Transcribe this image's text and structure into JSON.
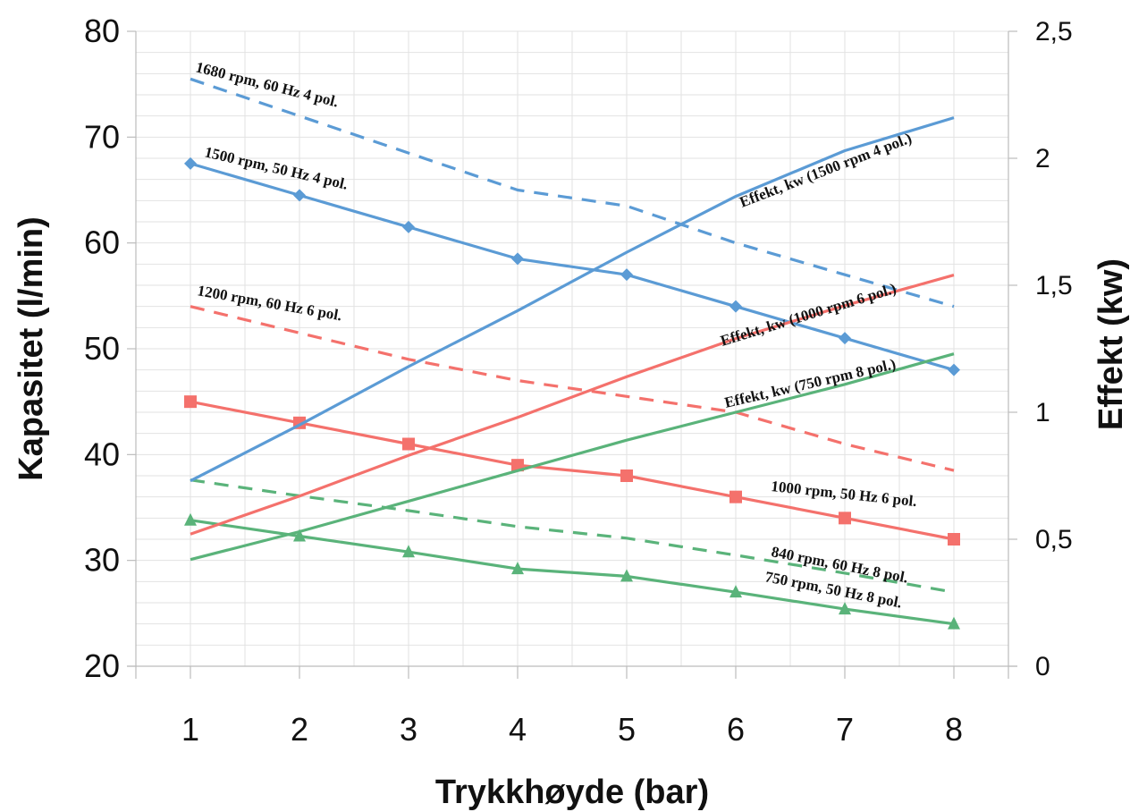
{
  "chart_data": {
    "type": "line",
    "xlabel": "Trykkhøyde (bar)",
    "ylabel": "Kapasitet (l/min)",
    "y2label": "Effekt (kw)",
    "x": [
      1,
      2,
      3,
      4,
      5,
      6,
      7,
      8
    ],
    "x_ticks": [
      "1",
      "2",
      "3",
      "4",
      "5",
      "6",
      "7",
      "8"
    ],
    "ylim": [
      20,
      80
    ],
    "y_ticks": [
      "20",
      "30",
      "40",
      "50",
      "60",
      "70",
      "80"
    ],
    "y2lim": [
      0,
      2.5
    ],
    "y2_ticks": [
      "0",
      "0,5",
      "1",
      "1,5",
      "2",
      "2,5"
    ],
    "grid": true,
    "legend": "none",
    "series": [
      {
        "name": "1680 rpm, 60 Hz 4 pol.",
        "axis": "left",
        "color": "#5b9bd5",
        "dashed": true,
        "marker": "none",
        "values": [
          75.5,
          72,
          68.5,
          65,
          63.5,
          60,
          57,
          54
        ]
      },
      {
        "name": "1500 rpm, 50 Hz 4 pol.",
        "axis": "left",
        "color": "#5b9bd5",
        "dashed": false,
        "marker": "diamond",
        "values": [
          67.5,
          64.5,
          61.5,
          58.5,
          57,
          54,
          51,
          48
        ]
      },
      {
        "name": "1200 rpm, 60 Hz 6 pol.",
        "axis": "left",
        "color": "#f4716c",
        "dashed": true,
        "marker": "none",
        "values": [
          54,
          51.5,
          49,
          47,
          45.5,
          44,
          41,
          38.5
        ]
      },
      {
        "name": "1000 rpm, 50 Hz 6 pol.",
        "axis": "left",
        "color": "#f4716c",
        "dashed": false,
        "marker": "square",
        "values": [
          45,
          43,
          41,
          39,
          38,
          36,
          34,
          32
        ]
      },
      {
        "name": "840 rpm, 60 Hz 8 pol.",
        "axis": "left",
        "color": "#5ab37a",
        "dashed": true,
        "marker": "none",
        "values": [
          37.6,
          36.1,
          34.7,
          33.2,
          32.1,
          30.5,
          28.8,
          27
        ]
      },
      {
        "name": "750 rpm, 50 Hz 8 pol.",
        "axis": "left",
        "color": "#5ab37a",
        "dashed": false,
        "marker": "triangle",
        "values": [
          33.8,
          32.3,
          30.8,
          29.2,
          28.5,
          27,
          25.4,
          24
        ]
      },
      {
        "name": "Effekt, kw (1500 rpm 4 pol.)",
        "axis": "right",
        "color": "#5b9bd5",
        "dashed": false,
        "marker": "none",
        "values": [
          0.73,
          0.95,
          1.18,
          1.4,
          1.63,
          1.85,
          2.03,
          2.16
        ]
      },
      {
        "name": "Effekt, kw (1000 rpm 6 pol.)",
        "axis": "right",
        "color": "#f4716c",
        "dashed": false,
        "marker": "none",
        "values": [
          0.52,
          0.67,
          0.83,
          0.98,
          1.14,
          1.29,
          1.42,
          1.54
        ]
      },
      {
        "name": "Effekt, kw (750 rpm 8 pol.)",
        "axis": "right",
        "color": "#5ab37a",
        "dashed": false,
        "marker": "none",
        "values": [
          0.42,
          0.53,
          0.65,
          0.77,
          0.89,
          1.0,
          1.11,
          1.23
        ]
      }
    ]
  }
}
